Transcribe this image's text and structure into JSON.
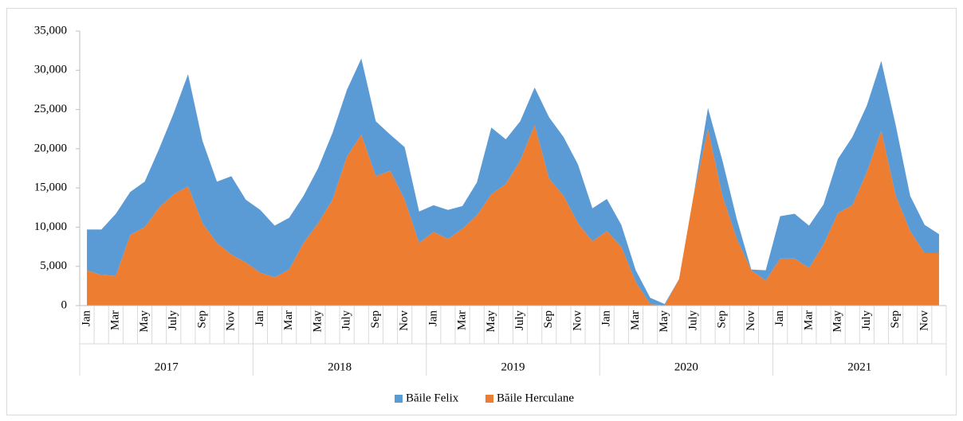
{
  "chart_data": {
    "type": "stacked_area",
    "categories": [
      "Jan",
      null,
      "Mar",
      null,
      "May",
      null,
      "July",
      null,
      "Sep",
      null,
      "Nov",
      null,
      "Jan",
      null,
      "Mar",
      null,
      "May",
      null,
      "July",
      null,
      "Sep",
      null,
      "Nov",
      null,
      "Jan",
      null,
      "Mar",
      null,
      "May",
      null,
      "July",
      null,
      "Sep",
      null,
      "Nov",
      null,
      "Jan",
      null,
      "Mar",
      null,
      "May",
      null,
      "July",
      null,
      "Sep",
      null,
      "Nov",
      null,
      "Jan",
      null,
      "Mar",
      null,
      "May",
      null,
      "July",
      null,
      "Sep",
      null,
      "Nov",
      null
    ],
    "years": [
      "2017",
      "2018",
      "2019",
      "2020",
      "2021"
    ],
    "series": [
      {
        "name": "Băile Felix",
        "color": "#5b9bd5",
        "values": [
          5200,
          5800,
          7900,
          5500,
          5800,
          7500,
          10300,
          14300,
          10500,
          7800,
          10000,
          8000,
          8000,
          6600,
          6600,
          6000,
          7000,
          8500,
          8500,
          9700,
          7000,
          4600,
          6700,
          4000,
          3400,
          3700,
          2900,
          4200,
          8500,
          5700,
          5000,
          4800,
          7800,
          7500,
          7500,
          4200,
          4100,
          2800,
          1500,
          800,
          200,
          0,
          0,
          2700,
          4500,
          2500,
          100,
          1300,
          5400,
          5700,
          5400,
          5100,
          6900,
          8700,
          8500,
          8900,
          9000,
          4500,
          3600,
          2400
        ]
      },
      {
        "name": "Băile Herculane",
        "color": "#ed7d31",
        "values": [
          4500,
          3900,
          3800,
          9000,
          10000,
          12500,
          14200,
          15200,
          10500,
          8000,
          6500,
          5500,
          4200,
          3600,
          4600,
          8000,
          10500,
          13500,
          19000,
          21800,
          16500,
          17200,
          13500,
          8000,
          9400,
          8500,
          9800,
          11500,
          14200,
          15500,
          18500,
          23000,
          16200,
          14000,
          10500,
          8200,
          9500,
          7500,
          3000,
          200,
          0,
          3400,
          14000,
          22500,
          14000,
          8500,
          4500,
          3200,
          6000,
          6000,
          4800,
          7800,
          11800,
          12800,
          17000,
          22300,
          14000,
          9500,
          6700,
          6700
        ]
      }
    ],
    "ylim": [
      0,
      35000
    ],
    "yticks": [
      0,
      {
        "value": 5000,
        "label": "5,000"
      },
      {
        "value": 10000,
        "label": "10,000"
      },
      {
        "value": 15000,
        "label": "15,000"
      },
      {
        "value": 20000,
        "label": "20,000"
      },
      {
        "value": 25000,
        "label": "25,000"
      },
      {
        "value": 30000,
        "label": "30,000"
      },
      {
        "value": 35000,
        "label": "35,000"
      }
    ],
    "legend": "bottom"
  }
}
